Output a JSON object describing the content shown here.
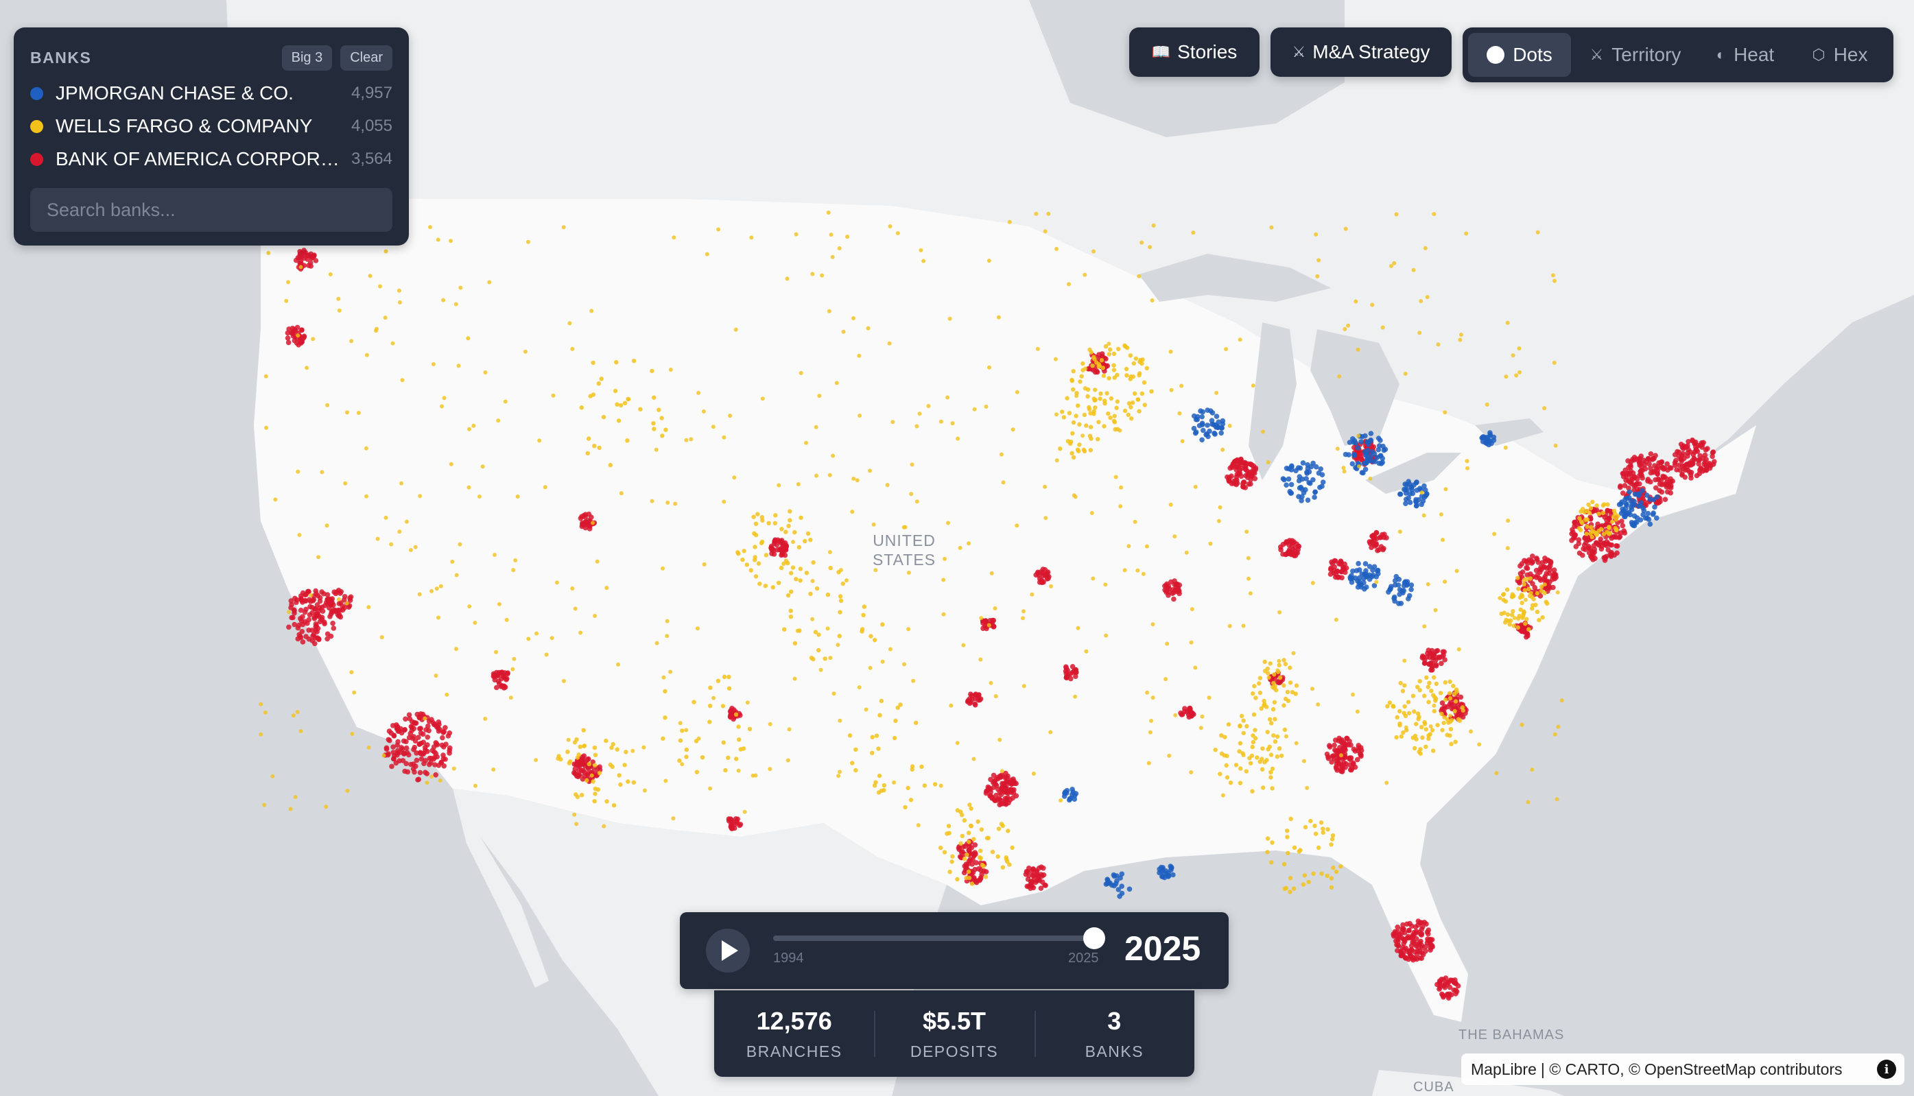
{
  "banks_panel": {
    "title": "BANKS",
    "btn_big3": "Big 3",
    "btn_clear": "Clear",
    "items": [
      {
        "name": "JPMORGAN CHASE & CO.",
        "count": "4,957",
        "color": "#1f5fbf"
      },
      {
        "name": "WELLS FARGO & COMPANY",
        "count": "4,055",
        "color": "#f2c21b"
      },
      {
        "name": "BANK OF AMERICA CORPORATION",
        "count": "3,564",
        "color": "#d8172f"
      }
    ],
    "search_placeholder": "Search banks..."
  },
  "toolbar": {
    "stories_icon": "book-icon",
    "stories_label": "Stories",
    "mna_icon": "swords-icon",
    "mna_label": "M&A Strategy"
  },
  "view_modes": [
    {
      "label": "Dots",
      "icon": "dot-icon",
      "active": true
    },
    {
      "label": "Territory",
      "icon": "swords-icon",
      "active": false
    },
    {
      "label": "Heat",
      "icon": "half-circle-icon",
      "active": false
    },
    {
      "label": "Hex",
      "icon": "hexagon-icon",
      "active": false
    }
  ],
  "timeline": {
    "start": "1994",
    "end": "2025",
    "current": "2025",
    "progress": 1.0
  },
  "stats": {
    "branches_value": "12,576",
    "branches_label": "BRANCHES",
    "deposits_value": "$5.5T",
    "deposits_label": "DEPOSITS",
    "banks_value": "3",
    "banks_label": "BANKS"
  },
  "map_labels": {
    "country": "UNITED STATES",
    "bahamas": "THE BAHAMAS",
    "cuba": "CUBA"
  },
  "attribution": {
    "maplibre": "MapLibre",
    "carto": "| © CARTO, ©",
    "osm": "OpenStreetMap",
    "contributors": "contributors"
  }
}
